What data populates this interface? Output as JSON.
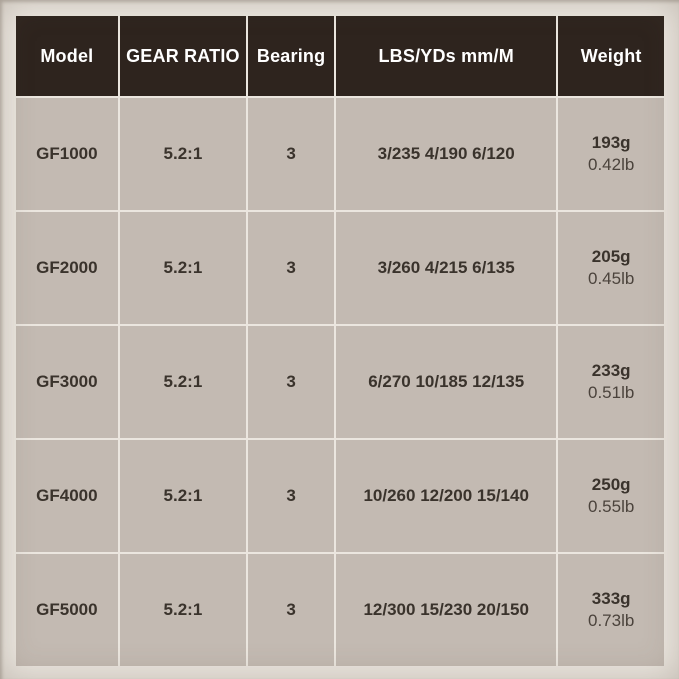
{
  "colors": {
    "page_bg": "#ebe6df",
    "header_bg": "#2e241e",
    "header_text": "#ffffff",
    "cell_bg": "#c3bab2",
    "cell_text": "#3a332c",
    "cell_text_soft": "#4b433c"
  },
  "table": {
    "columns": [
      "Model",
      "GEAR RATIO",
      "Bearing",
      "LBS/YDs mm/M",
      "Weight"
    ],
    "rows": [
      {
        "model": "GF1000",
        "gear_ratio": "5.2:1",
        "bearing": "3",
        "line_capacity": "3/235 4/190 6/120",
        "weight_g": "193g",
        "weight_lb": "0.42lb"
      },
      {
        "model": "GF2000",
        "gear_ratio": "5.2:1",
        "bearing": "3",
        "line_capacity": "3/260 4/215 6/135",
        "weight_g": "205g",
        "weight_lb": "0.45lb"
      },
      {
        "model": "GF3000",
        "gear_ratio": "5.2:1",
        "bearing": "3",
        "line_capacity": "6/270 10/185 12/135",
        "weight_g": "233g",
        "weight_lb": "0.51lb"
      },
      {
        "model": "GF4000",
        "gear_ratio": "5.2:1",
        "bearing": "3",
        "line_capacity": "10/260 12/200 15/140",
        "weight_g": "250g",
        "weight_lb": "0.55lb"
      },
      {
        "model": "GF5000",
        "gear_ratio": "5.2:1",
        "bearing": "3",
        "line_capacity": "12/300 15/230 20/150",
        "weight_g": "333g",
        "weight_lb": "0.73lb"
      }
    ]
  }
}
